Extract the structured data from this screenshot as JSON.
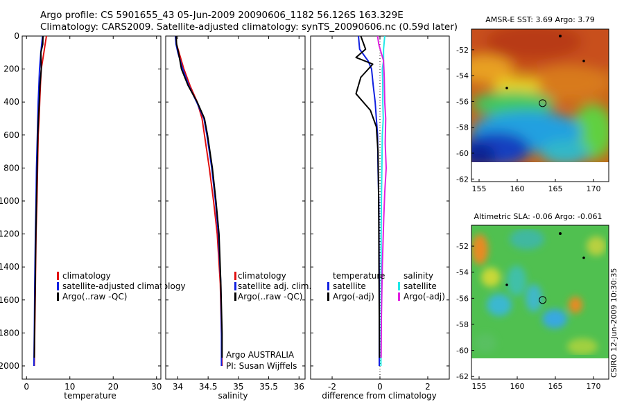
{
  "header": {
    "line1": "Argo profile: CS 5901655_43 05-Jun-2009 20090606_1182 56.126S 163.329E",
    "line2": "Climatology: CARS2009. Satellite-adjusted climatology: synTS_20090606.nc (0.59d later)"
  },
  "colors": {
    "climatology": "#e01010",
    "satellite": "#1020e0",
    "argo": "#000000",
    "sal_satellite": "#20e8e8",
    "sal_argo": "#e020e0"
  },
  "chart_data": [
    {
      "id": "temperature",
      "type": "line",
      "xlabel": "temperature",
      "xlim": [
        -1,
        31
      ],
      "ylim": [
        0,
        2080
      ],
      "xticks": [
        0,
        10,
        20,
        30
      ],
      "yticks": [
        0,
        200,
        400,
        600,
        800,
        1000,
        1200,
        1400,
        1600,
        1800,
        2000
      ],
      "series": [
        {
          "name": "climatology",
          "color": "#e01010",
          "x": [
            4.6,
            4.3,
            4.0,
            3.4,
            3.2,
            3.05,
            2.9,
            2.7,
            2.55,
            2.4,
            2.2,
            2.05,
            1.9,
            1.8
          ],
          "y": [
            0,
            50,
            100,
            200,
            300,
            400,
            500,
            600,
            800,
            1000,
            1200,
            1500,
            1800,
            2000
          ]
        },
        {
          "name": "satellite-adjusted climatology",
          "color": "#1020e0",
          "x": [
            3.7,
            3.5,
            3.3,
            3.0,
            2.85,
            2.7,
            2.6,
            2.5,
            2.3,
            2.2,
            2.05,
            1.9,
            1.8,
            1.7
          ],
          "y": [
            0,
            50,
            100,
            200,
            300,
            400,
            500,
            600,
            800,
            1000,
            1200,
            1500,
            1800,
            2000
          ]
        },
        {
          "name": "Argo(..raw -QC)",
          "color": "#000000",
          "x": [
            3.8,
            3.75,
            3.3,
            3.4,
            3.1,
            2.95,
            2.75,
            2.6,
            2.45,
            2.3,
            2.15,
            2.0,
            1.85,
            1.8
          ],
          "y": [
            0,
            50,
            100,
            200,
            300,
            400,
            500,
            600,
            800,
            1000,
            1200,
            1500,
            1800,
            1950
          ]
        }
      ],
      "legend": [
        "climatology",
        "satellite-adjusted climatology",
        "Argo(..raw -QC)"
      ]
    },
    {
      "id": "salinity",
      "type": "line",
      "xlabel": "salinity",
      "xlim": [
        33.8,
        36.1
      ],
      "ylim": [
        0,
        2080
      ],
      "xticks": [
        34,
        34.5,
        35,
        35.5,
        36
      ],
      "yticks": [
        0,
        200,
        400,
        600,
        800,
        1000,
        1200,
        1400,
        1600,
        1800,
        2000
      ],
      "series": [
        {
          "name": "climatology",
          "color": "#e01010",
          "x": [
            33.97,
            33.98,
            34.02,
            34.1,
            34.2,
            34.32,
            34.4,
            34.44,
            34.52,
            34.59,
            34.65,
            34.7,
            34.72,
            34.73
          ],
          "y": [
            0,
            50,
            100,
            200,
            300,
            400,
            500,
            600,
            800,
            1000,
            1200,
            1500,
            1800,
            2000
          ]
        },
        {
          "name": "satellite adj. clim.",
          "color": "#1020e0",
          "x": [
            33.96,
            33.97,
            34.0,
            34.08,
            34.18,
            34.31,
            34.43,
            34.48,
            34.56,
            34.62,
            34.67,
            34.71,
            34.72,
            34.72
          ],
          "y": [
            0,
            50,
            100,
            200,
            300,
            400,
            500,
            600,
            800,
            1000,
            1200,
            1500,
            1800,
            2000
          ]
        },
        {
          "name": "Argo(..raw -QC)",
          "color": "#000000",
          "x": [
            33.97,
            33.98,
            34.01,
            34.06,
            34.17,
            34.32,
            34.44,
            34.49,
            34.57,
            34.63,
            34.68,
            34.71,
            34.73,
            34.73
          ],
          "y": [
            0,
            50,
            100,
            200,
            300,
            400,
            500,
            600,
            800,
            1000,
            1200,
            1500,
            1800,
            1950
          ]
        }
      ],
      "legend": [
        "climatology",
        "satellite adj. clim.",
        "Argo(..raw -QC)"
      ],
      "annotation": [
        "Argo AUSTRALIA",
        "PI: Susan Wijffels"
      ]
    },
    {
      "id": "difference",
      "type": "line",
      "xlabel": "difference from climatology",
      "xlim": [
        -2.9,
        2.9
      ],
      "ylim": [
        0,
        2080
      ],
      "xticks": [
        -2,
        0,
        2
      ],
      "yticks": [
        0,
        200,
        400,
        600,
        800,
        1000,
        1200,
        1400,
        1600,
        1800,
        2000
      ],
      "series": [
        {
          "name": "temperature satellite",
          "color": "#1020e0",
          "x": [
            -0.9,
            -0.85,
            -0.5,
            -0.35,
            -0.28,
            -0.2,
            -0.15,
            -0.1,
            -0.08,
            -0.05,
            -0.04,
            -0.03,
            -0.03,
            -0.03
          ],
          "y": [
            0,
            80,
            150,
            200,
            300,
            400,
            500,
            600,
            800,
            1000,
            1200,
            1500,
            1800,
            2000
          ]
        },
        {
          "name": "temperature Argo(-adj)",
          "color": "#000000",
          "x": [
            -0.8,
            -0.6,
            -1.0,
            -0.3,
            -0.8,
            -1.0,
            -0.4,
            -0.15,
            -0.08,
            -0.06,
            -0.05,
            -0.04,
            -0.03,
            -0.02
          ],
          "y": [
            0,
            80,
            130,
            170,
            250,
            350,
            450,
            550,
            700,
            900,
            1100,
            1400,
            1700,
            1950
          ]
        },
        {
          "name": "salinity satellite",
          "color": "#20e8e8",
          "x": [
            0.2,
            0.15,
            0.15,
            0.1,
            0.12,
            0.12,
            0.14,
            0.1,
            0.08,
            0.06,
            0.05,
            0.05,
            0.04,
            0.04
          ],
          "y": [
            0,
            80,
            150,
            200,
            300,
            400,
            500,
            600,
            800,
            1000,
            1200,
            1500,
            1800,
            2000
          ]
        },
        {
          "name": "salinity Argo(-adj)",
          "color": "#e020e0",
          "x": [
            -0.1,
            -0.05,
            0.05,
            0.15,
            0.18,
            0.2,
            0.24,
            0.22,
            0.26,
            0.2,
            0.16,
            0.1,
            0.06,
            0.05
          ],
          "y": [
            0,
            50,
            100,
            150,
            250,
            400,
            500,
            650,
            800,
            950,
            1100,
            1400,
            1700,
            1950
          ]
        }
      ],
      "legend_left": {
        "header": "temperature",
        "items": [
          "satellite",
          "Argo(-adj)"
        ]
      },
      "legend_right": {
        "header": "salinity",
        "items": [
          "satellite",
          "Argo(-adj)"
        ]
      }
    },
    {
      "id": "sst-map",
      "type": "heatmap",
      "title": "AMSR-E SST: 3.69  Argo: 3.79",
      "xticks": [
        155,
        160,
        165,
        170
      ],
      "yticks": [
        -52,
        -54,
        -56,
        -58,
        -60,
        -62
      ],
      "xlim": [
        154,
        172
      ],
      "ylim": [
        -62.2,
        -50.4
      ],
      "data_ylim": [
        -60.1,
        -50.4
      ],
      "marker": {
        "lon": 163.33,
        "lat": -56.13
      }
    },
    {
      "id": "sla-map",
      "type": "heatmap",
      "title": "Altimetric SLA: -0.06  Argo: -0.061",
      "xticks": [
        155,
        160,
        165,
        170
      ],
      "yticks": [
        -52,
        -54,
        -56,
        -58,
        -60,
        -62
      ],
      "xlim": [
        154,
        172
      ],
      "ylim": [
        -62.2,
        -50.4
      ],
      "data_ylim": [
        -60.1,
        -50.4
      ],
      "marker": {
        "lon": 163.33,
        "lat": -56.13
      }
    }
  ],
  "footer": {
    "credit": "CSIRO 12-Jun-2009 10:30:35"
  }
}
